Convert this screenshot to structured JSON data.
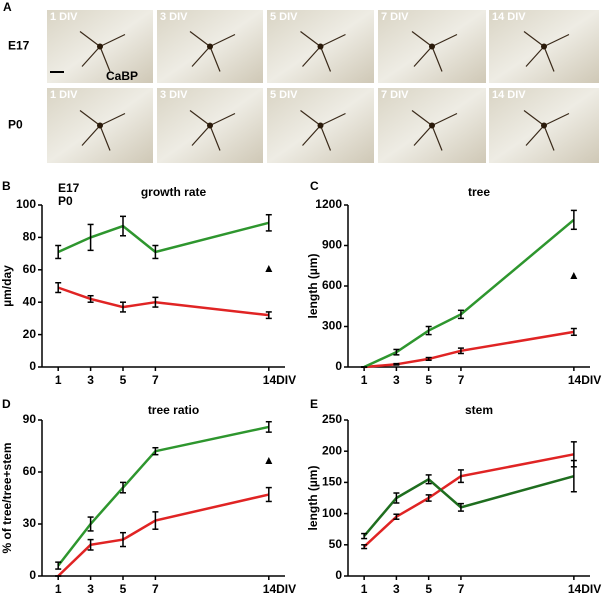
{
  "panel_a": {
    "letter": "A",
    "stain": "CaBP",
    "rows": [
      {
        "label": "E17",
        "days": [
          "1 DIV",
          "3 DIV",
          "5 DIV",
          "7 DIV",
          "14 DIV"
        ]
      },
      {
        "label": "P0",
        "days": [
          "1 DIV",
          "3 DIV",
          "5 DIV",
          "7 DIV",
          "14 DIV"
        ]
      }
    ]
  },
  "chart_data": [
    {
      "type": "line",
      "letter": "B",
      "title": "growth rate",
      "ylabel": "µm/day",
      "x": [
        1,
        3,
        5,
        7,
        14
      ],
      "xticks": [
        1,
        3,
        5,
        7,
        {
          "value": 14,
          "label": "14DIV"
        }
      ],
      "xlim": [
        0,
        15
      ],
      "ylim": [
        0,
        100
      ],
      "yticks": [
        0,
        20,
        40,
        60,
        80,
        100
      ],
      "legend": "top-left",
      "annotation": "▲",
      "series": [
        {
          "name": "E17",
          "color": "#e02424",
          "values": [
            49,
            42,
            37,
            40,
            32
          ],
          "error": [
            3,
            2,
            3,
            3,
            2
          ]
        },
        {
          "name": "P0",
          "color": "#2e962e",
          "values": [
            71,
            80,
            87,
            71,
            89
          ],
          "error": [
            4,
            8,
            6,
            4,
            5
          ]
        }
      ]
    },
    {
      "type": "line",
      "letter": "C",
      "title": "tree",
      "ylabel": "length (µm)",
      "x": [
        1,
        3,
        5,
        7,
        14
      ],
      "xticks": [
        1,
        3,
        5,
        7,
        {
          "value": 14,
          "label": "14DIV"
        }
      ],
      "xlim": [
        0,
        15
      ],
      "ylim": [
        0,
        1200
      ],
      "yticks": [
        0,
        300,
        600,
        900,
        1200
      ],
      "annotation": "▲",
      "series": [
        {
          "color": "#e02424",
          "values": [
            0,
            20,
            60,
            120,
            260
          ],
          "error": [
            0,
            5,
            10,
            20,
            25
          ]
        },
        {
          "color": "#2e962e",
          "values": [
            0,
            110,
            270,
            390,
            1090
          ],
          "error": [
            0,
            20,
            30,
            30,
            70
          ]
        }
      ]
    },
    {
      "type": "line",
      "letter": "D",
      "title": "tree ratio",
      "ylabel": "% of tree/tree+stem",
      "x": [
        1,
        3,
        5,
        7,
        14
      ],
      "xticks": [
        1,
        3,
        5,
        7,
        {
          "value": 14,
          "label": "14DIV"
        }
      ],
      "xlim": [
        0,
        15
      ],
      "ylim": [
        0,
        90
      ],
      "yticks": [
        0,
        30,
        60,
        90
      ],
      "annotation": "▲",
      "series": [
        {
          "color": "#e02424",
          "values": [
            0,
            18,
            21,
            32,
            47
          ],
          "error": [
            0,
            3,
            4,
            5,
            4
          ]
        },
        {
          "color": "#2e962e",
          "values": [
            6,
            30,
            51,
            72,
            86
          ],
          "error": [
            2,
            4,
            3,
            2,
            3
          ]
        }
      ]
    },
    {
      "type": "line",
      "letter": "E",
      "title": "stem",
      "ylabel": "length (µm)",
      "x": [
        1,
        3,
        5,
        7,
        14
      ],
      "xticks": [
        1,
        3,
        5,
        7,
        {
          "value": 14,
          "label": "14DIV"
        }
      ],
      "xlim": [
        0,
        15
      ],
      "ylim": [
        0,
        250
      ],
      "yticks": [
        0,
        50,
        100,
        150,
        200,
        250
      ],
      "series": [
        {
          "color": "#e02424",
          "values": [
            47,
            95,
            125,
            160,
            195
          ],
          "error": [
            3,
            4,
            5,
            10,
            20
          ]
        },
        {
          "color": "#1f6e1f",
          "values": [
            64,
            125,
            155,
            110,
            160
          ],
          "error": [
            4,
            8,
            7,
            6,
            25
          ]
        }
      ]
    }
  ]
}
